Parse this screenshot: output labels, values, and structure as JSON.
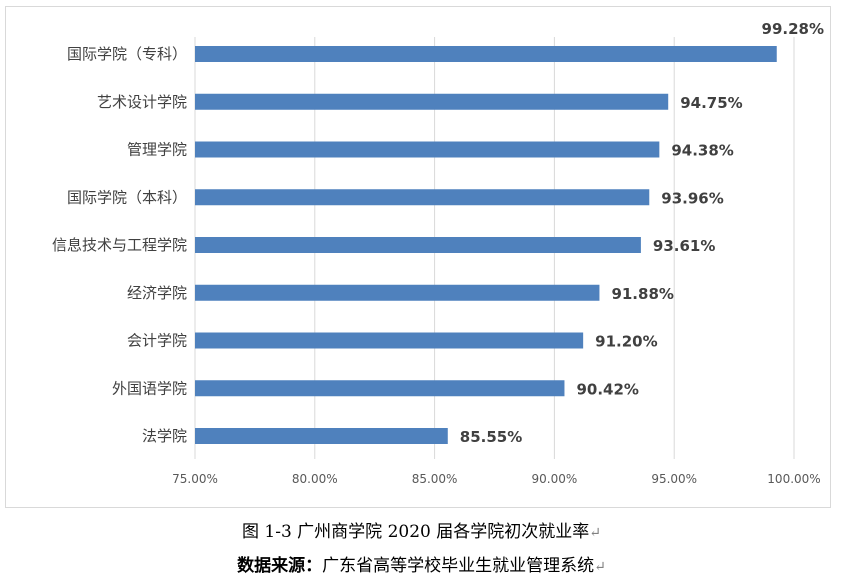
{
  "chart_data": {
    "type": "bar",
    "orientation": "horizontal",
    "categories": [
      "国际学院（专科）",
      "艺术设计学院",
      "管理学院",
      "国际学院（本科）",
      "信息技术与工程学院",
      "经济学院",
      "会计学院",
      "外国语学院",
      "法学院"
    ],
    "values": [
      99.28,
      94.75,
      94.38,
      93.96,
      93.61,
      91.88,
      91.2,
      90.42,
      85.55
    ],
    "data_labels": [
      "99.28%",
      "94.75%",
      "94.38%",
      "93.96%",
      "93.61%",
      "91.88%",
      "91.20%",
      "90.42%",
      "85.55%"
    ],
    "x_ticks": [
      "75.00%",
      "80.00%",
      "85.00%",
      "90.00%",
      "95.00%",
      "100.00%"
    ],
    "x_tick_values": [
      75,
      80,
      85,
      90,
      95,
      100
    ],
    "xlim": [
      75,
      100
    ],
    "grid": "vertical",
    "bar_color": "#4f81bd"
  },
  "caption": "图 1-3  广州商学院 2020 届各学院初次就业率",
  "source_label": "数据来源：",
  "source_text": "广东省高等学校毕业生就业管理系统",
  "return_mark": "↵"
}
